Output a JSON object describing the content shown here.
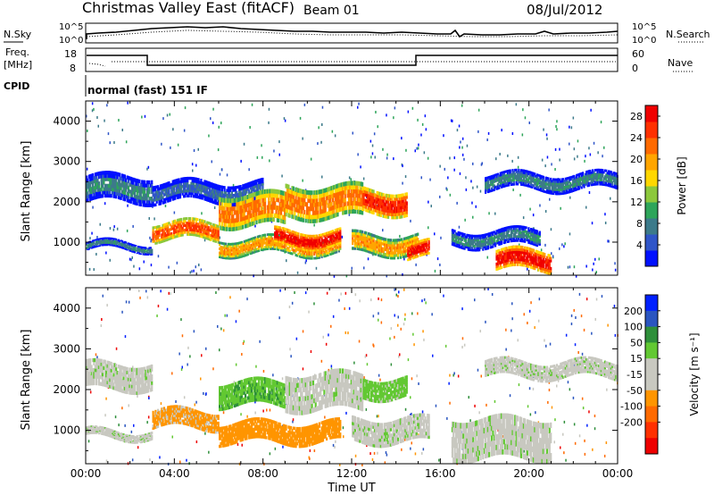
{
  "header": {
    "title": "Christmas Valley East (fitACF)",
    "beam": "Beam 01",
    "date": "08/Jul/2012"
  },
  "top_panels": {
    "nsky_label": "N.Sky",
    "nsky_ticks": [
      "10^5",
      "10^0"
    ],
    "nsearch_label": "N.Search",
    "nsearch_ticks": [
      "10^5",
      "10^0"
    ],
    "freq_label": "Freq.",
    "freq_unit": "[MHz]",
    "freq_ticks": [
      "18",
      "8"
    ],
    "nave_label": "Nave",
    "nave_ticks": [
      "60",
      "0"
    ],
    "cpid_label": "CPID",
    "cpid_value": "normal (fast) 151 IF"
  },
  "chart_data": [
    {
      "type": "heatmap",
      "title": "",
      "xlabel": "Time UT",
      "ylabel": "Slant Range [km]",
      "x_ticks": [
        "00:00",
        "04:00",
        "08:00",
        "12:00",
        "16:00",
        "20:00",
        "00:00"
      ],
      "xlim_hours": [
        0,
        24
      ],
      "y_ticks": [
        "1000",
        "2000",
        "3000",
        "4000"
      ],
      "ylim": [
        180,
        4500
      ],
      "colorbar": {
        "label": "Power [dB]",
        "ticks": [
          "4",
          "8",
          "12",
          "16",
          "20",
          "24",
          "28"
        ],
        "range": [
          0,
          30
        ],
        "colors": [
          "#0010ff",
          "#2f55c8",
          "#3c7a8a",
          "#2ea55a",
          "#8cc83c",
          "#ffd700",
          "#ffa500",
          "#ff6a00",
          "#ff3000",
          "#f00000"
        ]
      },
      "bands": [
        {
          "t0": 0.0,
          "t1": 3.0,
          "r0": 2000,
          "r1": 2650,
          "power": 8
        },
        {
          "t0": 0.0,
          "t1": 3.0,
          "r0": 800,
          "r1": 1000,
          "power": 8
        },
        {
          "t0": 3.0,
          "t1": 6.0,
          "r0": 1050,
          "r1": 1500,
          "power": 24
        },
        {
          "t0": 3.0,
          "t1": 8.0,
          "r0": 2000,
          "r1": 2500,
          "power": 6
        },
        {
          "t0": 6.0,
          "t1": 9.0,
          "r0": 1400,
          "r1": 2200,
          "power": 22
        },
        {
          "t0": 6.0,
          "t1": 11.5,
          "r0": 700,
          "r1": 1100,
          "power": 20
        },
        {
          "t0": 8.5,
          "t1": 11.5,
          "r0": 900,
          "r1": 1300,
          "power": 28
        },
        {
          "t0": 9.0,
          "t1": 12.5,
          "r0": 1600,
          "r1": 2400,
          "power": 22
        },
        {
          "t0": 12.5,
          "t1": 14.5,
          "r0": 1700,
          "r1": 2300,
          "power": 26
        },
        {
          "t0": 12.0,
          "t1": 15.0,
          "r0": 700,
          "r1": 1200,
          "power": 20
        },
        {
          "t0": 14.5,
          "t1": 15.5,
          "r0": 600,
          "r1": 1000,
          "power": 28
        },
        {
          "t0": 16.5,
          "t1": 20.5,
          "r0": 900,
          "r1": 1300,
          "power": 8
        },
        {
          "t0": 18.5,
          "t1": 21.0,
          "r0": 300,
          "r1": 800,
          "power": 28
        },
        {
          "t0": 18.0,
          "t1": 24.0,
          "r0": 2300,
          "r1": 2700,
          "power": 8
        }
      ]
    },
    {
      "type": "heatmap",
      "title": "",
      "xlabel": "Time UT",
      "ylabel": "Slant Range [km]",
      "x_ticks": [
        "00:00",
        "04:00",
        "08:00",
        "12:00",
        "16:00",
        "20:00",
        "00:00"
      ],
      "xlim_hours": [
        0,
        24
      ],
      "y_ticks": [
        "1000",
        "2000",
        "3000",
        "4000"
      ],
      "ylim": [
        180,
        4500
      ],
      "colorbar": {
        "label": "Velocity [m s⁻¹]",
        "ticks": [
          "200",
          "100",
          "50",
          "15",
          "-15",
          "-50",
          "-100",
          "-200"
        ],
        "colors": [
          "#0020ff",
          "#2a55c0",
          "#2e8f3a",
          "#62c832",
          "#c8c8c0",
          "#c8c8c0",
          "#ff9500",
          "#ff6a00",
          "#ff3000",
          "#ee0000"
        ]
      },
      "bands": [
        {
          "t0": 0.0,
          "t1": 3.0,
          "r0": 2000,
          "r1": 2650,
          "velocity": 0
        },
        {
          "t0": 0.0,
          "t1": 3.0,
          "r0": 800,
          "r1": 1000,
          "velocity": 0
        },
        {
          "t0": 3.0,
          "t1": 6.0,
          "r0": 1050,
          "r1": 1500,
          "velocity": -60
        },
        {
          "t0": 6.0,
          "t1": 9.0,
          "r0": 1600,
          "r1": 2200,
          "velocity": 40
        },
        {
          "t0": 6.0,
          "t1": 11.5,
          "r0": 700,
          "r1": 1200,
          "velocity": -80
        },
        {
          "t0": 9.0,
          "t1": 12.5,
          "r0": 1500,
          "r1": 2400,
          "velocity": 0
        },
        {
          "t0": 12.0,
          "t1": 15.5,
          "r0": 700,
          "r1": 1300,
          "velocity": 0
        },
        {
          "t0": 12.5,
          "t1": 14.5,
          "r0": 1800,
          "r1": 2300,
          "velocity": 30
        },
        {
          "t0": 16.5,
          "t1": 21.0,
          "r0": 300,
          "r1": 1300,
          "velocity": 0
        },
        {
          "t0": 18.0,
          "t1": 24.0,
          "r0": 2300,
          "r1": 2700,
          "velocity": 0
        }
      ]
    }
  ]
}
